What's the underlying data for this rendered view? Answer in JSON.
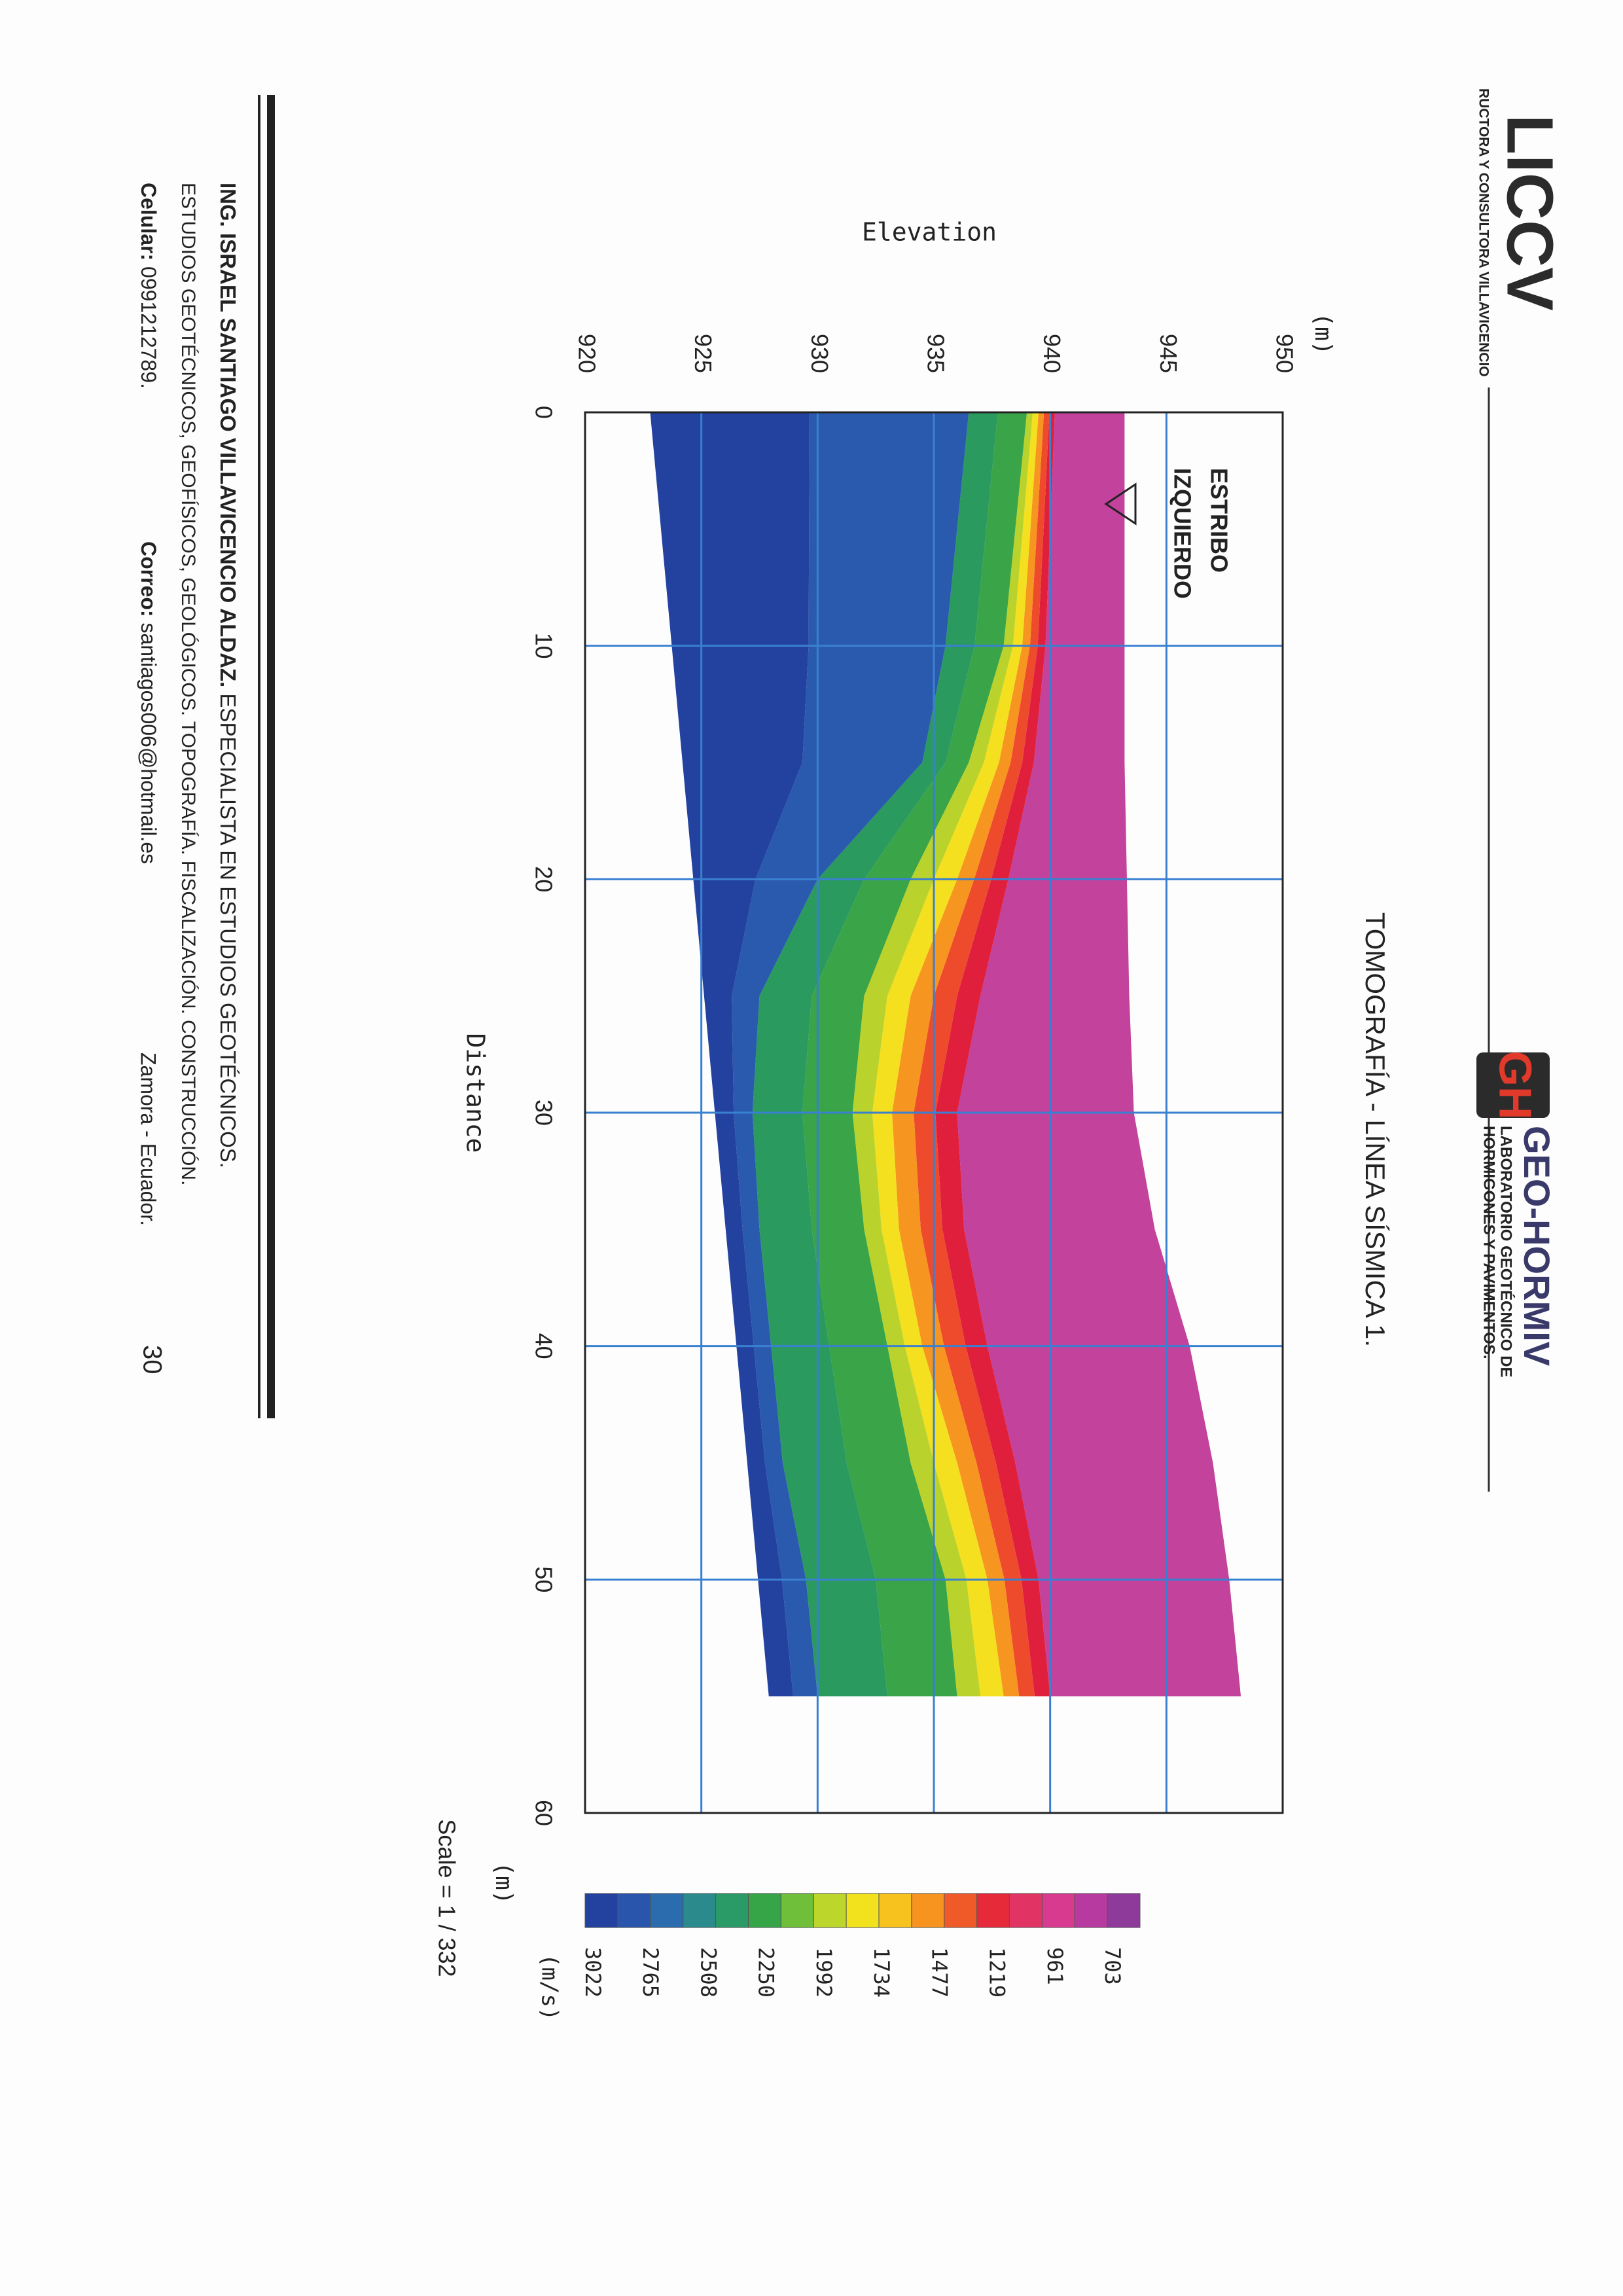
{
  "header": {
    "logo_left": {
      "brand": "LICCV",
      "tagline": "RUCTORA Y CONSULTORA VILLAVICENCIO"
    },
    "logo_right": {
      "mark": "GH",
      "brand": "GEO-HORMIV",
      "tagline_1": "LABORATORIO GEOTÉCNICO DE",
      "tagline_2": "HORMIGONES Y PAVIMENTOS."
    }
  },
  "figure": {
    "title": "TOMOGRAFÍA - LÍNEA SÍSMICA 1.",
    "y_unit": "(m)",
    "y_label": "Elevation",
    "yticks": [
      920,
      925,
      930,
      935,
      940,
      945,
      950
    ],
    "x_label": "Distance",
    "x_unit": "(m)",
    "xticks": [
      0,
      10,
      20,
      30,
      40,
      50,
      60
    ],
    "annotation": [
      "ESTRIBO",
      "IZQUIERDO"
    ],
    "scale": "Scale = 1 / 332",
    "colorbar": {
      "unit": "(m/s)",
      "labels": [
        703,
        961,
        1219,
        1477,
        1734,
        1992,
        2250,
        2508,
        2765,
        3022
      ]
    }
  },
  "footer": {
    "name": "ING. ISRAEL SANTIAGO VILLAVICENCIO ALDAZ.",
    "specialty": "ESPECIALISTA EN ESTUDIOS GEOTÉCNICOS.",
    "services": "ESTUDIOS GEOTÉCNICOS, GEOFÍSICOS, GEOLÓGICOS. TOPOGRAFÍA. FISCALIZACIÓN. CONSTRUCCIÓN.",
    "phone_label": "Celular:",
    "phone": "0991212789.",
    "email_label": "Correo:",
    "email": "santiagos006@hotmail.es",
    "location": "Zamora - Ecuador.",
    "page": "30"
  }
}
